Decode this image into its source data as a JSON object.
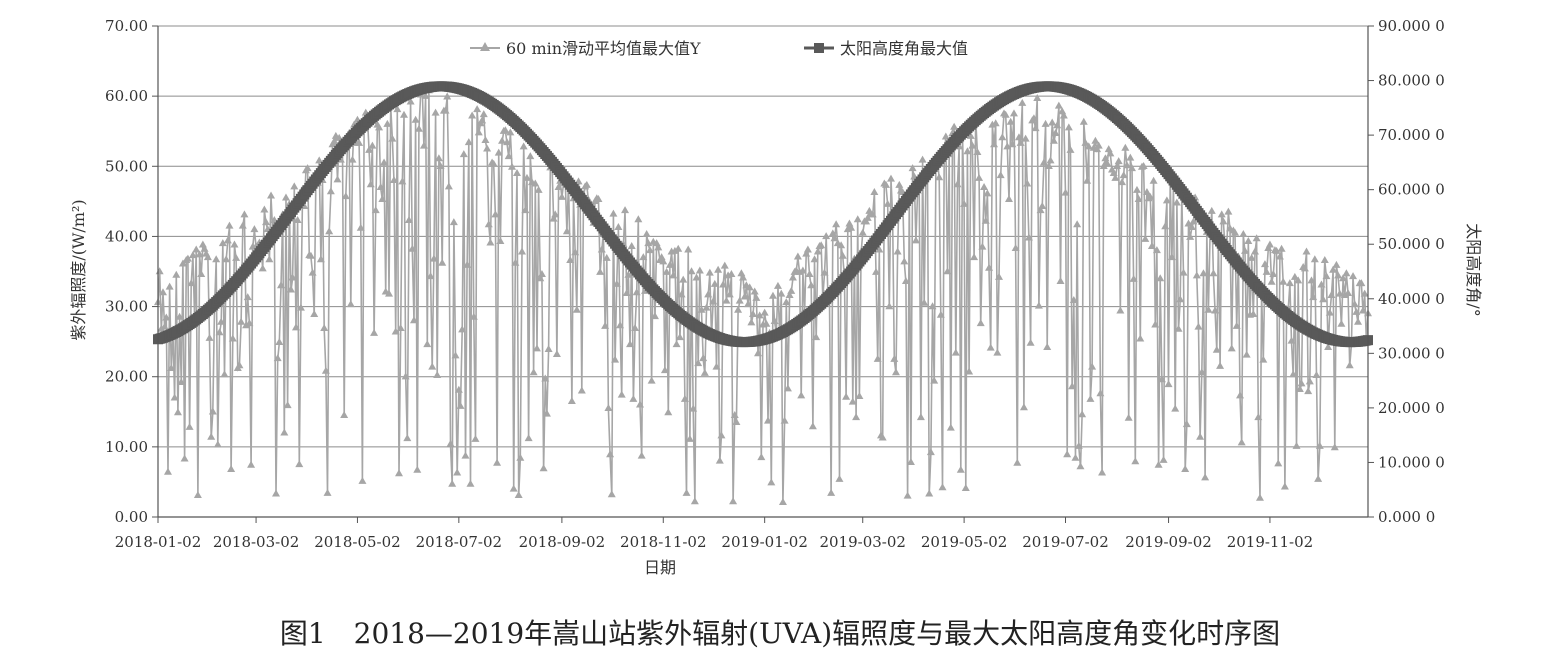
{
  "chart_data": {
    "type": "line",
    "x_start": "2018-01-02",
    "x_end": "2019-12-31",
    "xlabel": "日期",
    "x_tick_labels": [
      "2018-01-02",
      "2018-03-02",
      "2018-05-02",
      "2018-07-02",
      "2018-09-02",
      "2018-11-02",
      "2019-01-02",
      "2019-03-02",
      "2019-05-02",
      "2019-07-02",
      "2019-09-02",
      "2019-11-02"
    ],
    "y_left": {
      "label": "紫外辐照度/(W/m²)",
      "range": [
        0,
        70
      ],
      "ticks": [
        "0.00",
        "10.00",
        "20.00",
        "30.00",
        "40.00",
        "50.00",
        "60.00",
        "70.00"
      ]
    },
    "y_right": {
      "label": "太阳高度角/°",
      "range": [
        0,
        90
      ],
      "ticks": [
        "0.000 0",
        "10.000 0",
        "20.000 0",
        "30.000 0",
        "40.000 0",
        "50.000 0",
        "60.000 0",
        "70.000 0",
        "80.000 0",
        "90.000 0"
      ]
    },
    "grid": "horizontal",
    "legend_position": "top-center",
    "series": [
      {
        "name": "60 min滑动平均值最大值Y",
        "axis": "left",
        "color": "#a6a6a6",
        "marker": "triangle",
        "seasonal_envelope": {
          "dates": [
            "2018-01-02",
            "2018-03-02",
            "2018-05-02",
            "2018-06-20",
            "2018-07-02",
            "2018-09-02",
            "2018-11-02",
            "2019-01-02",
            "2019-03-02",
            "2019-05-02",
            "2019-06-20",
            "2019-07-02",
            "2019-09-02",
            "2019-11-02",
            "2019-12-31"
          ],
          "upper": [
            36,
            44,
            57,
            62,
            60,
            50,
            40,
            33,
            45,
            57,
            60,
            58,
            49,
            40,
            34
          ]
        },
        "values": []
      },
      {
        "name": "太阳高度角最大值",
        "axis": "right",
        "color": "#595959",
        "marker": "square",
        "values": []
      }
    ]
  },
  "caption": "图1　2018—2019年嵩山站紫外辐射(UVA)辐照度与最大太阳高度角变化时序图"
}
